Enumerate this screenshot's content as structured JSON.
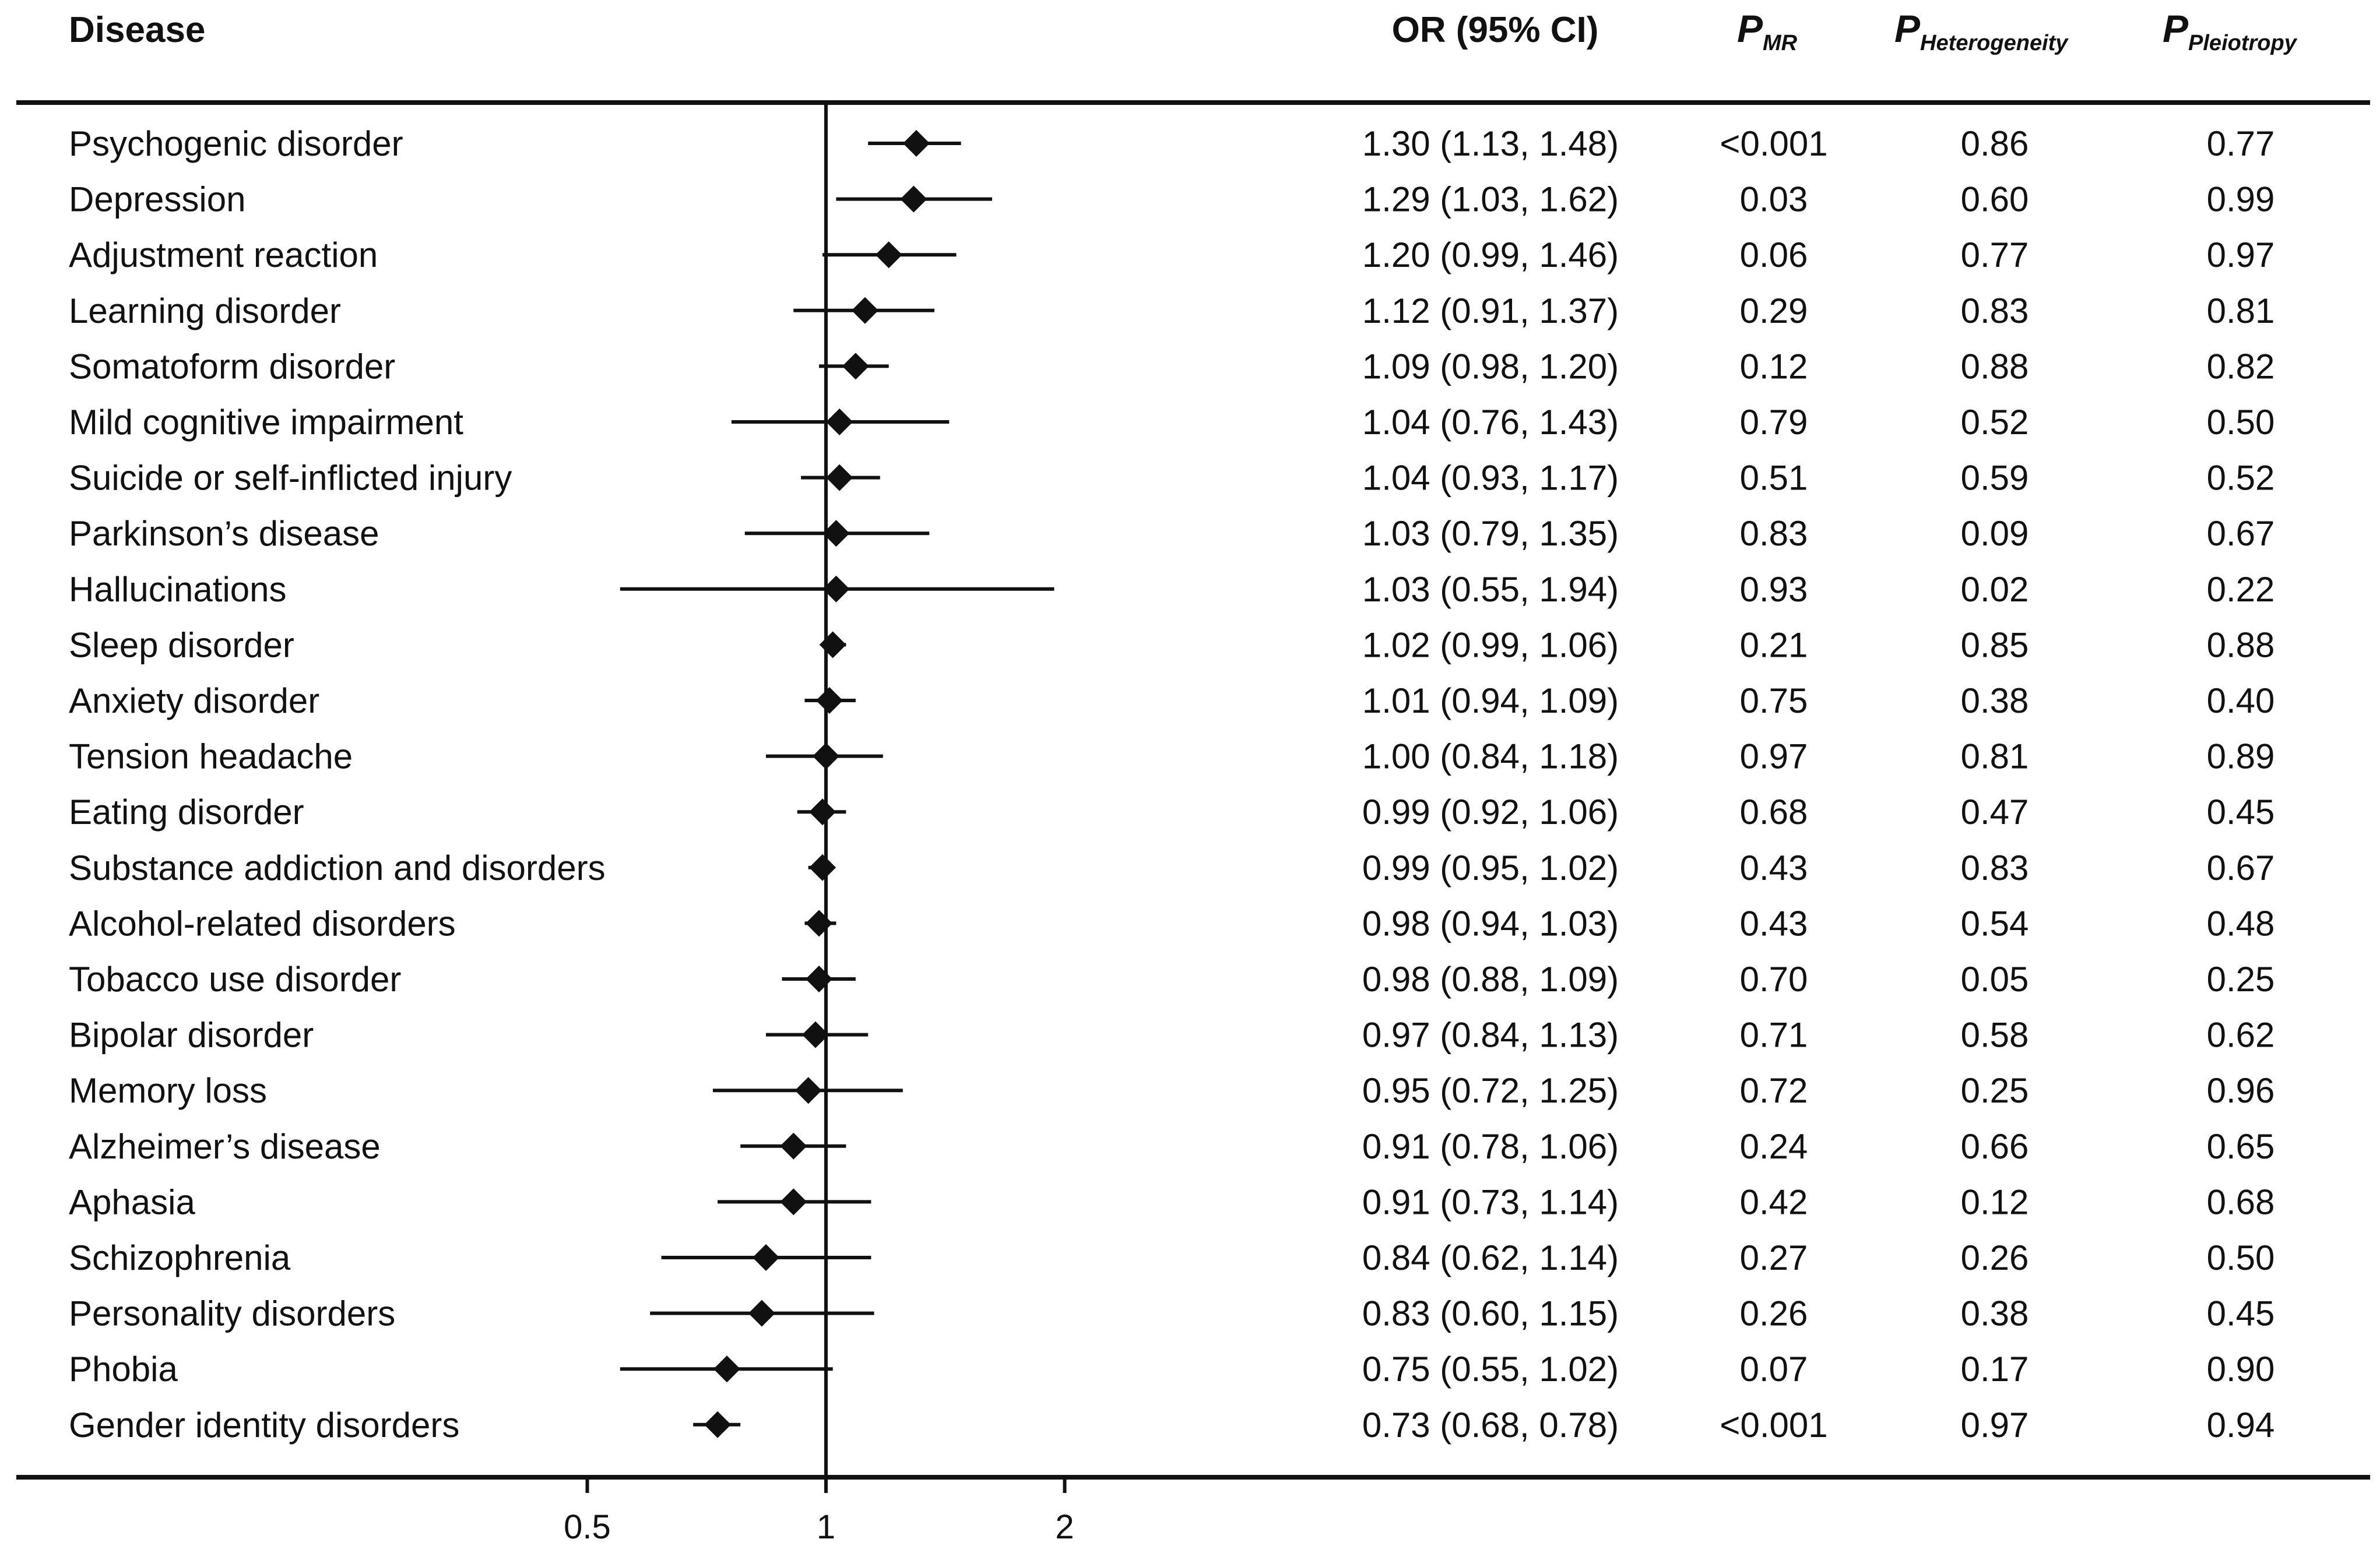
{
  "colors": {
    "ink": "#111111",
    "background": "#ffffff"
  },
  "header": {
    "disease": "Disease",
    "or_ci": "OR (95% CI)",
    "p_mr": {
      "p": "P",
      "sub": "MR"
    },
    "p_het": {
      "p": "P",
      "sub": "Heterogeneity"
    },
    "p_pleio": {
      "p": "P",
      "sub": "Pleiotropy"
    }
  },
  "chart_data": {
    "type": "forest",
    "xscale": "log2",
    "xlim": [
      0.25,
      4.0
    ],
    "reference_line": 1,
    "xticks": [
      0.5,
      1,
      2
    ],
    "xtick_labels": [
      "0.5",
      "1",
      "2"
    ],
    "rows": [
      {
        "disease": "Psychogenic disorder",
        "or": 1.3,
        "lo": 1.13,
        "hi": 1.48,
        "or_text": "1.30 (1.13, 1.48)",
        "p_mr": "<0.001",
        "p_het": "0.86",
        "p_pleio": "0.77"
      },
      {
        "disease": "Depression",
        "or": 1.29,
        "lo": 1.03,
        "hi": 1.62,
        "or_text": "1.29 (1.03, 1.62)",
        "p_mr": "0.03",
        "p_het": "0.60",
        "p_pleio": "0.99"
      },
      {
        "disease": "Adjustment reaction",
        "or": 1.2,
        "lo": 0.99,
        "hi": 1.46,
        "or_text": "1.20 (0.99, 1.46)",
        "p_mr": "0.06",
        "p_het": "0.77",
        "p_pleio": "0.97"
      },
      {
        "disease": "Learning disorder",
        "or": 1.12,
        "lo": 0.91,
        "hi": 1.37,
        "or_text": "1.12 (0.91, 1.37)",
        "p_mr": "0.29",
        "p_het": "0.83",
        "p_pleio": "0.81"
      },
      {
        "disease": "Somatoform disorder",
        "or": 1.09,
        "lo": 0.98,
        "hi": 1.2,
        "or_text": "1.09 (0.98, 1.20)",
        "p_mr": "0.12",
        "p_het": "0.88",
        "p_pleio": "0.82"
      },
      {
        "disease": "Mild cognitive impairment",
        "or": 1.04,
        "lo": 0.76,
        "hi": 1.43,
        "or_text": "1.04 (0.76, 1.43)",
        "p_mr": "0.79",
        "p_het": "0.52",
        "p_pleio": "0.50"
      },
      {
        "disease": "Suicide or self-inflicted injury",
        "or": 1.04,
        "lo": 0.93,
        "hi": 1.17,
        "or_text": "1.04 (0.93, 1.17)",
        "p_mr": "0.51",
        "p_het": "0.59",
        "p_pleio": "0.52"
      },
      {
        "disease": "Parkinson’s disease",
        "or": 1.03,
        "lo": 0.79,
        "hi": 1.35,
        "or_text": "1.03 (0.79, 1.35)",
        "p_mr": "0.83",
        "p_het": "0.09",
        "p_pleio": "0.67"
      },
      {
        "disease": "Hallucinations",
        "or": 1.03,
        "lo": 0.55,
        "hi": 1.94,
        "or_text": "1.03 (0.55, 1.94)",
        "p_mr": "0.93",
        "p_het": "0.02",
        "p_pleio": "0.22"
      },
      {
        "disease": "Sleep disorder",
        "or": 1.02,
        "lo": 0.99,
        "hi": 1.06,
        "or_text": "1.02 (0.99, 1.06)",
        "p_mr": "0.21",
        "p_het": "0.85",
        "p_pleio": "0.88"
      },
      {
        "disease": "Anxiety disorder",
        "or": 1.01,
        "lo": 0.94,
        "hi": 1.09,
        "or_text": "1.01 (0.94, 1.09)",
        "p_mr": "0.75",
        "p_het": "0.38",
        "p_pleio": "0.40"
      },
      {
        "disease": "Tension headache",
        "or": 1.0,
        "lo": 0.84,
        "hi": 1.18,
        "or_text": "1.00 (0.84, 1.18)",
        "p_mr": "0.97",
        "p_het": "0.81",
        "p_pleio": "0.89"
      },
      {
        "disease": "Eating disorder",
        "or": 0.99,
        "lo": 0.92,
        "hi": 1.06,
        "or_text": "0.99 (0.92, 1.06)",
        "p_mr": "0.68",
        "p_het": "0.47",
        "p_pleio": "0.45"
      },
      {
        "disease": "Substance addiction and disorders",
        "or": 0.99,
        "lo": 0.95,
        "hi": 1.02,
        "or_text": "0.99 (0.95, 1.02)",
        "p_mr": "0.43",
        "p_het": "0.83",
        "p_pleio": "0.67"
      },
      {
        "disease": "Alcohol-related disorders",
        "or": 0.98,
        "lo": 0.94,
        "hi": 1.03,
        "or_text": "0.98 (0.94, 1.03)",
        "p_mr": "0.43",
        "p_het": "0.54",
        "p_pleio": "0.48"
      },
      {
        "disease": "Tobacco use disorder",
        "or": 0.98,
        "lo": 0.88,
        "hi": 1.09,
        "or_text": "0.98 (0.88, 1.09)",
        "p_mr": "0.70",
        "p_het": "0.05",
        "p_pleio": "0.25"
      },
      {
        "disease": "Bipolar disorder",
        "or": 0.97,
        "lo": 0.84,
        "hi": 1.13,
        "or_text": "0.97 (0.84, 1.13)",
        "p_mr": "0.71",
        "p_het": "0.58",
        "p_pleio": "0.62"
      },
      {
        "disease": "Memory loss",
        "or": 0.95,
        "lo": 0.72,
        "hi": 1.25,
        "or_text": "0.95 (0.72, 1.25)",
        "p_mr": "0.72",
        "p_het": "0.25",
        "p_pleio": "0.96"
      },
      {
        "disease": "Alzheimer’s disease",
        "or": 0.91,
        "lo": 0.78,
        "hi": 1.06,
        "or_text": "0.91 (0.78, 1.06)",
        "p_mr": "0.24",
        "p_het": "0.66",
        "p_pleio": "0.65"
      },
      {
        "disease": "Aphasia",
        "or": 0.91,
        "lo": 0.73,
        "hi": 1.14,
        "or_text": "0.91 (0.73, 1.14)",
        "p_mr": "0.42",
        "p_het": "0.12",
        "p_pleio": "0.68"
      },
      {
        "disease": "Schizophrenia",
        "or": 0.84,
        "lo": 0.62,
        "hi": 1.14,
        "or_text": "0.84 (0.62, 1.14)",
        "p_mr": "0.27",
        "p_het": "0.26",
        "p_pleio": "0.50"
      },
      {
        "disease": "Personality disorders",
        "or": 0.83,
        "lo": 0.6,
        "hi": 1.15,
        "or_text": "0.83 (0.60, 1.15)",
        "p_mr": "0.26",
        "p_het": "0.38",
        "p_pleio": "0.45"
      },
      {
        "disease": "Phobia",
        "or": 0.75,
        "lo": 0.55,
        "hi": 1.02,
        "or_text": "0.75 (0.55, 1.02)",
        "p_mr": "0.07",
        "p_het": "0.17",
        "p_pleio": "0.90"
      },
      {
        "disease": "Gender identity disorders",
        "or": 0.73,
        "lo": 0.68,
        "hi": 0.78,
        "or_text": "0.73 (0.68, 0.78)",
        "p_mr": "<0.001",
        "p_het": "0.97",
        "p_pleio": "0.94"
      }
    ]
  }
}
